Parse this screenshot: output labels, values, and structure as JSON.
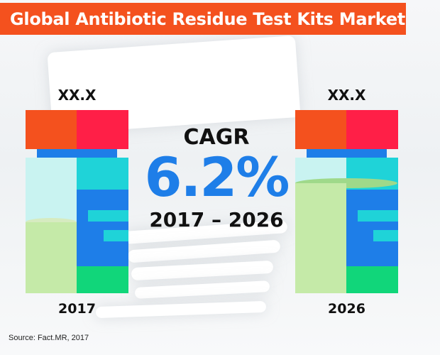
{
  "header": {
    "title": "Global Antibiotic Residue Test Kits Market"
  },
  "chart_data": {
    "type": "bar",
    "title": "Global Antibiotic Residue Test Kits Market",
    "categories": [
      "2017",
      "2026"
    ],
    "value_labels": [
      "XX.X",
      "XX.X"
    ],
    "series": [
      {
        "values": [
          null,
          null
        ]
      }
    ],
    "xlabel": "",
    "ylabel": "",
    "grid": false,
    "legend": "none"
  },
  "highlight": {
    "label": "CAGR",
    "value": "6.2%",
    "period": "2017 – 2026"
  },
  "footer": {
    "source": "Source: Fact.MR, 2017"
  },
  "colors": {
    "title_bg": "#f4511e",
    "cap_orange": "#f4511e",
    "cap_red": "#ff1f47",
    "blue": "#1e7ee8",
    "cyan": "#1fd3d8",
    "light_cyan": "#b8f2ef",
    "light_green": "#c5eaa8",
    "green": "#11d67a",
    "text": "#111111"
  }
}
